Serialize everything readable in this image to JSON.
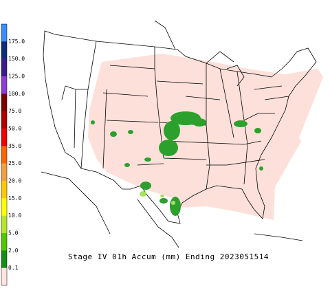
{
  "title": "Stage IV 01h Accum (mm) Ending 2023051514",
  "legend": {
    "labels": [
      "175.0",
      "150.0",
      "125.0",
      "100.0",
      "75.0",
      "50.0",
      "35.0",
      "25.0",
      "20.0",
      "15.0",
      "10.0",
      "5.0",
      "2.0",
      "0.1"
    ],
    "colors": [
      "#3c8cff",
      "#102c78",
      "#3c1c8c",
      "#8c3cd8",
      "#7a0000",
      "#b40000",
      "#f00000",
      "#ff6400",
      "#f0a040",
      "#ffc800",
      "#ffff00",
      "#b4e628",
      "#50c800",
      "#148c14",
      "#ffe4e1"
    ]
  }
}
